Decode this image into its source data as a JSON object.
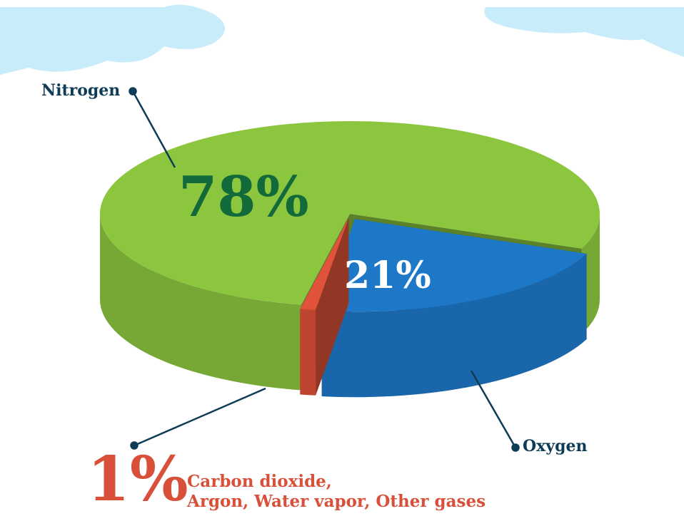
{
  "chart_data": {
    "type": "pie",
    "categories": [
      "Nitrogen",
      "Oxygen",
      "Carbon dioxide,\nArgon, Water vapor, Other gases"
    ],
    "values": [
      78,
      21,
      1
    ],
    "value_labels": [
      "78%",
      "21%",
      "1%"
    ],
    "colors": [
      "#8cc63f",
      "#1e78c8",
      "#e0533a"
    ]
  }
}
